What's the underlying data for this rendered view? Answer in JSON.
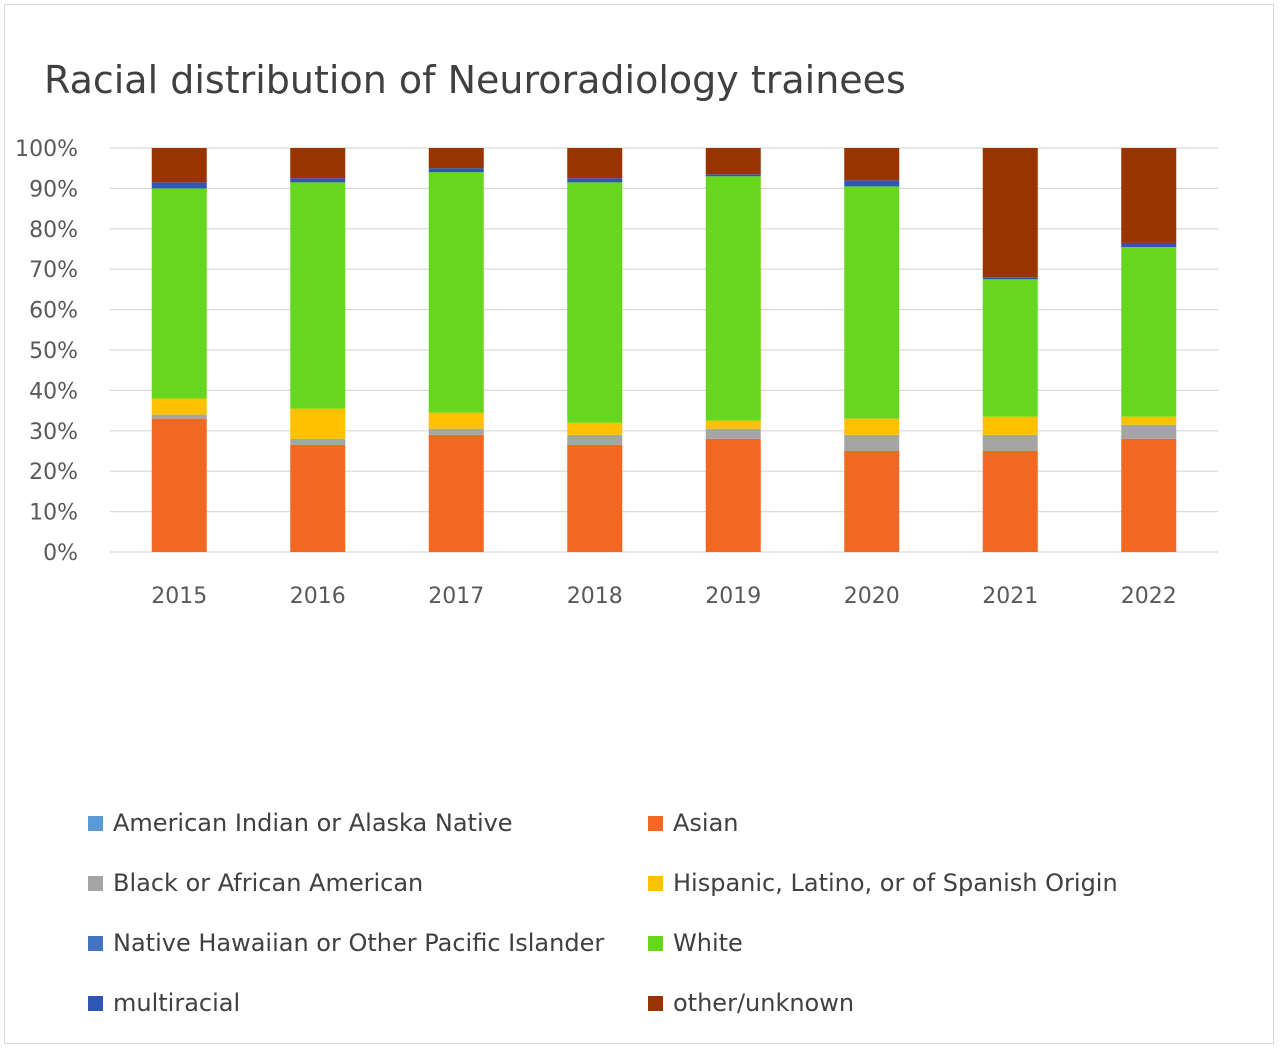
{
  "chart_data": {
    "type": "bar",
    "stacked": true,
    "title": "Racial distribution of Neuroradiology trainees",
    "xlabel": "",
    "ylabel": "",
    "ylim": [
      0,
      100
    ],
    "yticks": [
      "0%",
      "10%",
      "20%",
      "30%",
      "40%",
      "50%",
      "60%",
      "70%",
      "80%",
      "90%",
      "100%"
    ],
    "grid": true,
    "legend_position": "bottom",
    "categories": [
      "2015",
      "2016",
      "2017",
      "2018",
      "2019",
      "2020",
      "2021",
      "2022"
    ],
    "series": [
      {
        "name": "American Indian or Alaska Native",
        "color": "#5b9bd5",
        "values": [
          0,
          0,
          0,
          0,
          0,
          0,
          0,
          0
        ]
      },
      {
        "name": "Asian",
        "color": "#f26722",
        "values": [
          33,
          26.5,
          29,
          26.5,
          28,
          25,
          25,
          28
        ]
      },
      {
        "name": "Black or African American",
        "color": "#a5a5a5",
        "values": [
          1,
          1.5,
          1.5,
          2.5,
          2.5,
          4,
          4,
          3.5
        ]
      },
      {
        "name": "Hispanic, Latino, or of Spanish Origin",
        "color": "#ffc000",
        "values": [
          4,
          7.5,
          4,
          3,
          2,
          4,
          4.5,
          2
        ]
      },
      {
        "name": "Native Hawaiian or Other Pacific Islander",
        "color": "#4472c4",
        "values": [
          0,
          0,
          0,
          0,
          0,
          0,
          0,
          0
        ]
      },
      {
        "name": "White",
        "color": "#66d61e",
        "values": [
          52,
          56,
          59.5,
          59.5,
          60.5,
          57.5,
          34,
          42
        ]
      },
      {
        "name": "multiracial",
        "color": "#2f55b5",
        "values": [
          1.5,
          1,
          1,
          1,
          0.5,
          1.5,
          0.5,
          1
        ]
      },
      {
        "name": "other/unknown",
        "color": "#993300",
        "values": [
          8.5,
          7.5,
          5,
          7.5,
          6.5,
          8,
          32,
          23.5
        ]
      }
    ]
  }
}
